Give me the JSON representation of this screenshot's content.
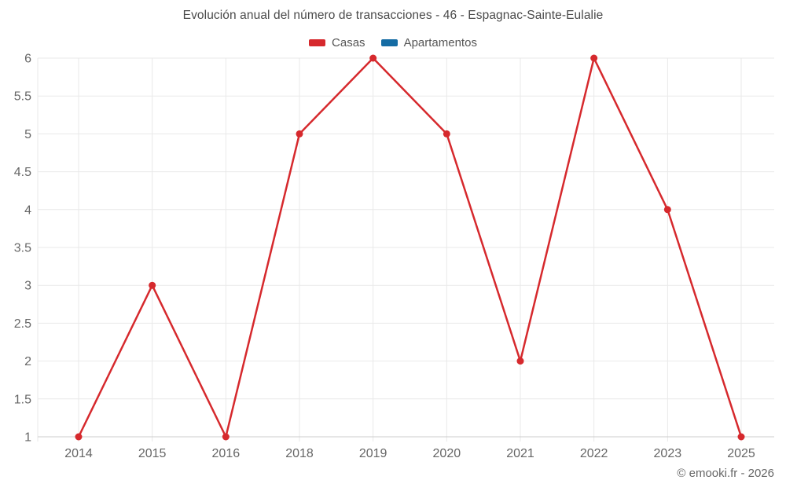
{
  "header": {
    "title": "Evolución anual del número de transacciones - 46 - Espagnac-Sainte-Eulalie"
  },
  "legend": {
    "position": "top",
    "items": [
      {
        "label": "Casas",
        "color": "#d6292d"
      },
      {
        "label": "Apartamentos",
        "color": "#156ca4"
      }
    ]
  },
  "footer": {
    "attribution": "© emooki.fr - 2026"
  },
  "chart_data": {
    "type": "line",
    "title": "Evolución anual del número de transacciones - 46 - Espagnac-Sainte-Eulalie",
    "categories": [
      "2014",
      "2015",
      "2016",
      "2018",
      "2019",
      "2020",
      "2021",
      "2022",
      "2023",
      "2025"
    ],
    "series": [
      {
        "name": "Casas",
        "color": "#d6292d",
        "marker": "circle",
        "values": [
          1,
          3,
          1,
          5,
          6,
          5,
          2,
          6,
          4,
          1
        ]
      },
      {
        "name": "Apartamentos",
        "color": "#156ca4",
        "marker": "circle",
        "values": []
      }
    ],
    "xlabel": "",
    "ylabel": "",
    "ylim": [
      1,
      6
    ],
    "ytick_step": 0.5,
    "ytick_labels": [
      "1",
      "1.5",
      "2",
      "2.5",
      "3",
      "3.5",
      "4",
      "4.5",
      "5",
      "5.5",
      "6"
    ],
    "grid": true,
    "legend_position": "top",
    "colors": {
      "grid_line": "#e9e9e9",
      "axis_line": "#cccccc",
      "tick_label": "#666666"
    }
  }
}
